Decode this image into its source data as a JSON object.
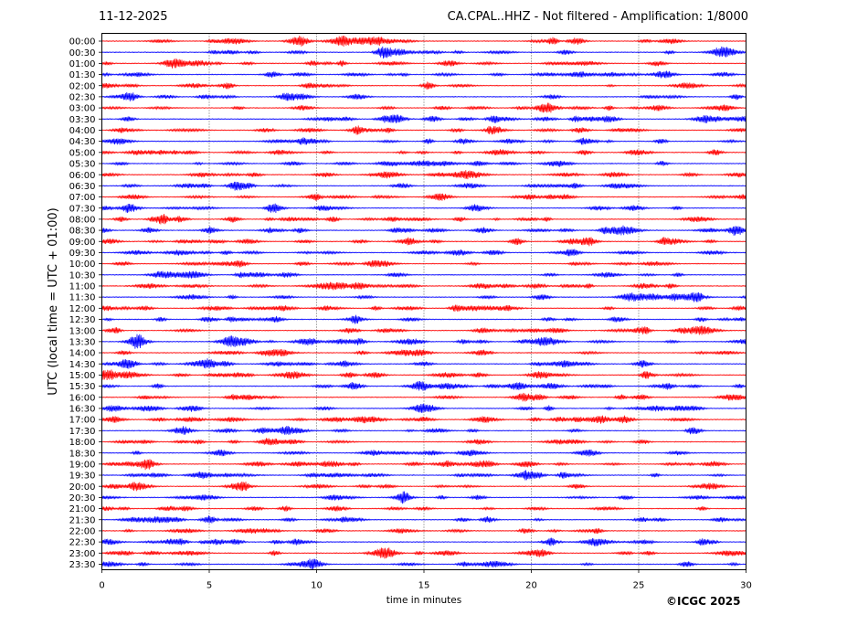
{
  "header": {
    "date": "11-12-2025",
    "title": "CA.CPAL..HHZ - Not filtered - Amplification: 1/8000"
  },
  "footer": {
    "copyright": "©ICGC 2025"
  },
  "chart_data": {
    "type": "line",
    "title": "CA.CPAL..HHZ - Not filtered - Amplification: 1/8000",
    "subtitle": "11-12-2025",
    "xlabel": "time in minutes",
    "ylabel": "UTC (local time = UTC + 01:00)",
    "xlim": [
      0,
      30
    ],
    "x_ticks": [
      0,
      5,
      10,
      15,
      20,
      25,
      30
    ],
    "grid": "vertical dotted lines at x ticks",
    "colors": {
      "even_hour_trace": "#ff0000",
      "half_hour_trace": "#0000ff",
      "grid": "#000000"
    },
    "rows": [
      "00:00",
      "00:30",
      "01:00",
      "01:30",
      "02:00",
      "02:30",
      "03:00",
      "03:30",
      "04:00",
      "04:30",
      "05:00",
      "05:30",
      "06:00",
      "06:30",
      "07:00",
      "07:30",
      "08:00",
      "08:30",
      "09:00",
      "09:30",
      "10:00",
      "10:30",
      "11:00",
      "11:30",
      "12:00",
      "12:30",
      "13:00",
      "13:30",
      "14:00",
      "14:30",
      "15:00",
      "15:30",
      "16:00",
      "16:30",
      "17:00",
      "17:30",
      "18:00",
      "18:30",
      "19:00",
      "19:30",
      "20:00",
      "20:30",
      "21:00",
      "21:30",
      "22:00",
      "22:30",
      "23:00",
      "23:30"
    ]
  }
}
